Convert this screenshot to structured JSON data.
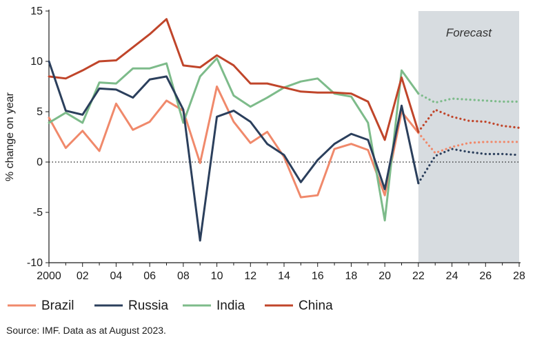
{
  "chart_data": {
    "type": "line",
    "title": "",
    "ylabel": "% change on year",
    "xlabel": "",
    "x_range": [
      2000,
      2028
    ],
    "ylim": [
      -10,
      15
    ],
    "yticks": [
      -10,
      -5,
      0,
      5,
      10,
      15
    ],
    "xticks": [
      {
        "value": 2000,
        "label": "2000"
      },
      {
        "value": 2002,
        "label": "02"
      },
      {
        "value": 2004,
        "label": "04"
      },
      {
        "value": 2006,
        "label": "06"
      },
      {
        "value": 2008,
        "label": "08"
      },
      {
        "value": 2010,
        "label": "10"
      },
      {
        "value": 2012,
        "label": "12"
      },
      {
        "value": 2014,
        "label": "14"
      },
      {
        "value": 2016,
        "label": "16"
      },
      {
        "value": 2018,
        "label": "18"
      },
      {
        "value": 2020,
        "label": "20"
      },
      {
        "value": 2022,
        "label": "22"
      },
      {
        "value": 2024,
        "label": "24"
      },
      {
        "value": 2026,
        "label": "26"
      },
      {
        "value": 2028,
        "label": "28"
      }
    ],
    "forecast": {
      "label": "Forecast",
      "start": 2022,
      "end": 2028
    },
    "zero_line": "dotted",
    "series": [
      {
        "name": "Brazil",
        "color": "#f0896b",
        "actual_x": [
          2000,
          2001,
          2002,
          2003,
          2004,
          2005,
          2006,
          2007,
          2008,
          2009,
          2010,
          2011,
          2012,
          2013,
          2014,
          2015,
          2016,
          2017,
          2018,
          2019,
          2020,
          2021,
          2022
        ],
        "actual": [
          4.4,
          1.4,
          3.1,
          1.1,
          5.8,
          3.2,
          4.0,
          6.1,
          5.1,
          -0.1,
          7.5,
          4.0,
          1.9,
          3.0,
          0.5,
          -3.5,
          -3.3,
          1.3,
          1.8,
          1.2,
          -3.3,
          5.0,
          2.9
        ],
        "forecast_x": [
          2022,
          2023,
          2024,
          2025,
          2026,
          2027,
          2028
        ],
        "forecast_values": [
          2.9,
          0.9,
          1.5,
          1.9,
          2.0,
          2.0,
          2.0
        ]
      },
      {
        "name": "Russia",
        "color": "#2b3f5c",
        "actual_x": [
          2000,
          2001,
          2002,
          2003,
          2004,
          2005,
          2006,
          2007,
          2008,
          2009,
          2010,
          2011,
          2012,
          2013,
          2014,
          2015,
          2016,
          2017,
          2018,
          2019,
          2020,
          2021,
          2022
        ],
        "actual": [
          10.0,
          5.1,
          4.7,
          7.3,
          7.2,
          6.4,
          8.2,
          8.5,
          5.2,
          -7.8,
          4.5,
          5.1,
          4.0,
          1.8,
          0.7,
          -2.0,
          0.2,
          1.8,
          2.8,
          2.2,
          -2.7,
          5.6,
          -2.1
        ],
        "forecast_x": [
          2022,
          2023,
          2024,
          2025,
          2026,
          2027,
          2028
        ],
        "forecast_values": [
          -2.1,
          0.6,
          1.3,
          1.0,
          0.8,
          0.8,
          0.7
        ]
      },
      {
        "name": "India",
        "color": "#7dbb8a",
        "actual_x": [
          2000,
          2001,
          2002,
          2003,
          2004,
          2005,
          2006,
          2007,
          2008,
          2009,
          2010,
          2011,
          2012,
          2013,
          2014,
          2015,
          2016,
          2017,
          2018,
          2019,
          2020,
          2021,
          2022
        ],
        "actual": [
          3.9,
          4.9,
          3.9,
          7.9,
          7.8,
          9.3,
          9.3,
          9.8,
          3.9,
          8.5,
          10.3,
          6.6,
          5.5,
          6.4,
          7.4,
          8.0,
          8.3,
          6.8,
          6.5,
          3.9,
          -5.8,
          9.1,
          6.8
        ],
        "forecast_x": [
          2022,
          2023,
          2024,
          2025,
          2026,
          2027,
          2028
        ],
        "forecast_values": [
          6.8,
          5.9,
          6.3,
          6.2,
          6.1,
          6.0,
          6.0
        ]
      },
      {
        "name": "China",
        "color": "#c0452a",
        "actual_x": [
          2000,
          2001,
          2002,
          2003,
          2004,
          2005,
          2006,
          2007,
          2008,
          2009,
          2010,
          2011,
          2012,
          2013,
          2014,
          2015,
          2016,
          2017,
          2018,
          2019,
          2020,
          2021,
          2022
        ],
        "actual": [
          8.5,
          8.3,
          9.1,
          10.0,
          10.1,
          11.4,
          12.7,
          14.2,
          9.6,
          9.4,
          10.6,
          9.6,
          7.8,
          7.8,
          7.4,
          7.0,
          6.9,
          6.9,
          6.8,
          6.0,
          2.2,
          8.4,
          3.0
        ],
        "forecast_x": [
          2022,
          2023,
          2024,
          2025,
          2026,
          2027,
          2028
        ],
        "forecast_values": [
          3.0,
          5.2,
          4.5,
          4.1,
          4.0,
          3.6,
          3.4
        ]
      }
    ]
  },
  "source": "Source: IMF. Data as at August 2023."
}
